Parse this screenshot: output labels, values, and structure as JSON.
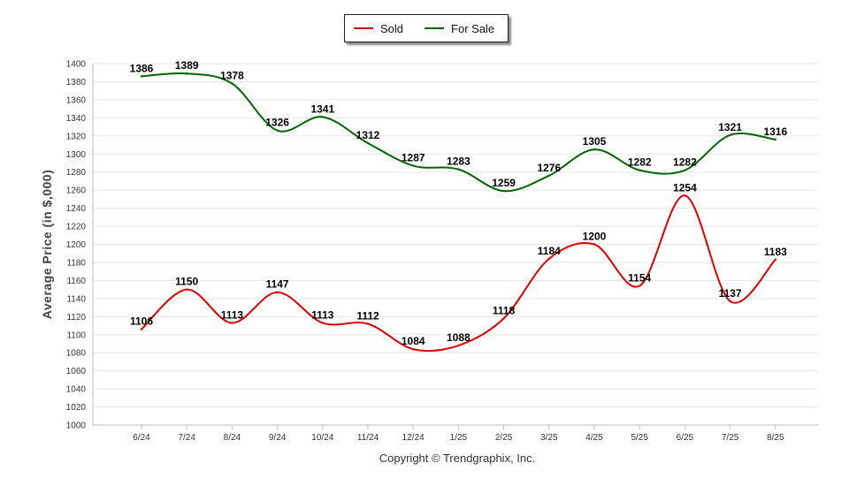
{
  "chart_data": {
    "type": "line",
    "title": "",
    "xlabel": "",
    "ylabel": "Average Price (in $,000)",
    "categories": [
      "6/24",
      "7/24",
      "8/24",
      "9/24",
      "10/24",
      "11/24",
      "12/24",
      "1/25",
      "2/25",
      "3/25",
      "4/25",
      "5/25",
      "6/25",
      "7/25",
      "8/25"
    ],
    "ylim": [
      1000,
      1400
    ],
    "yticks": [
      1000,
      1020,
      1040,
      1060,
      1080,
      1100,
      1120,
      1140,
      1160,
      1180,
      1200,
      1220,
      1240,
      1260,
      1280,
      1300,
      1320,
      1340,
      1360,
      1380,
      1400
    ],
    "grid": true,
    "legend": "top-center",
    "series": [
      {
        "name": "Sold",
        "color": "#e00000",
        "values": [
          1106,
          1150,
          1113,
          1147,
          1113,
          1112,
          1084,
          1088,
          1118,
          1184,
          1200,
          1154,
          1254,
          1137,
          1183
        ]
      },
      {
        "name": "For Sale",
        "color": "#006400",
        "values": [
          1386,
          1389,
          1378,
          1326,
          1341,
          1312,
          1287,
          1283,
          1259,
          1276,
          1305,
          1282,
          1282,
          1321,
          1316
        ]
      }
    ]
  },
  "legend": {
    "items": [
      {
        "label": "Sold",
        "color": "#e00000"
      },
      {
        "label": "For Sale",
        "color": "#006400"
      }
    ]
  },
  "footer": {
    "copyright": "Copyright © Trendgraphix, Inc."
  }
}
